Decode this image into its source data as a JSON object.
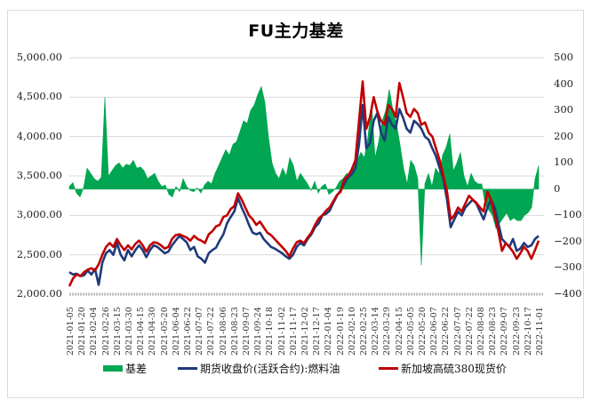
{
  "chart_data": {
    "type": "combo",
    "title": "FU主力基差",
    "left_axis": {
      "min": 2000,
      "max": 5000,
      "ticks": [
        "5,000.00",
        "4,500.00",
        "4,000.00",
        "3,500.00",
        "3,000.00",
        "2,500.00",
        "2,000.00"
      ]
    },
    "right_axis": {
      "min": -400,
      "max": 500,
      "ticks": [
        "500",
        "400",
        "300",
        "200",
        "100",
        "0",
        "−100",
        "−200",
        "−300",
        "−400"
      ]
    },
    "x_tick_labels": [
      "2021-01-05",
      "2021-01-20",
      "2021-02-04",
      "2021-02-26",
      "2021-03-15",
      "2021-03-30",
      "2021-04-15",
      "2021-04-30",
      "2021-05-20",
      "2021-06-04",
      "2021-06-22",
      "2021-07-07",
      "2021-07-22",
      "2021-08-06",
      "2021-08-23",
      "2021-09-07",
      "2021-09-24",
      "2021-10-18",
      "2021-11-02",
      "2021-11-17",
      "2021-12-02",
      "2021-12-17",
      "2022-01-04",
      "2022-01-19",
      "2022-02-10",
      "2022-02-25",
      "2022-03-14",
      "2022-03-29",
      "2022-04-15",
      "2022-05-05",
      "2022-05-20",
      "2022-06-07",
      "2022-06-22",
      "2022-07-07",
      "2022-07-22",
      "2022-08-08",
      "2022-08-23",
      "2022-09-07",
      "2022-09-23",
      "2022-10-17",
      "2022-11-01"
    ],
    "legend": [
      "基差",
      "期货收盘价(活跃合约):燃料油",
      "新加坡高硫380现货价"
    ],
    "grid": true,
    "legend_position": "bottom",
    "series": [
      {
        "name": "基差",
        "type": "area",
        "axis": "right",
        "color": "#00a651",
        "values": [
          10,
          25,
          -15,
          -30,
          5,
          80,
          60,
          40,
          30,
          45,
          350,
          50,
          70,
          90,
          100,
          80,
          95,
          90,
          110,
          80,
          85,
          70,
          40,
          50,
          60,
          30,
          10,
          15,
          -20,
          -30,
          10,
          -10,
          40,
          10,
          -5,
          -10,
          5,
          -15,
          15,
          30,
          20,
          60,
          90,
          120,
          150,
          130,
          170,
          180,
          220,
          260,
          250,
          300,
          320,
          360,
          390,
          330,
          200,
          100,
          60,
          40,
          80,
          50,
          120,
          90,
          30,
          60,
          40,
          20,
          -5,
          30,
          -15,
          10,
          20,
          -20,
          -10,
          5,
          30,
          40,
          60,
          50,
          80,
          110,
          140,
          120,
          200,
          330,
          120,
          180,
          260,
          300,
          380,
          300,
          250,
          170,
          80,
          20,
          110,
          90,
          40,
          -290,
          20,
          60,
          10,
          80,
          60,
          130,
          160,
          210,
          70,
          100,
          140,
          50,
          10,
          60,
          30,
          20,
          20,
          -60,
          -80,
          -100,
          -150,
          -130,
          -110,
          -90,
          -120,
          -110,
          -120,
          -120,
          -100,
          -90,
          -70,
          40,
          90
        ]
      },
      {
        "name": "期货收盘价(活跃合约):燃料油",
        "type": "line",
        "axis": "left",
        "color": "#1f3a7a",
        "values": [
          2280,
          2250,
          2260,
          2230,
          2240,
          2300,
          2250,
          2320,
          2120,
          2400,
          2520,
          2560,
          2500,
          2650,
          2500,
          2430,
          2560,
          2480,
          2560,
          2620,
          2560,
          2470,
          2560,
          2620,
          2600,
          2560,
          2520,
          2540,
          2620,
          2680,
          2740,
          2700,
          2660,
          2560,
          2600,
          2480,
          2450,
          2400,
          2520,
          2560,
          2590,
          2680,
          2760,
          2900,
          2980,
          3050,
          3220,
          3100,
          3000,
          2880,
          2780,
          2760,
          2780,
          2700,
          2650,
          2600,
          2580,
          2550,
          2520,
          2480,
          2450,
          2500,
          2600,
          2650,
          2620,
          2700,
          2760,
          2850,
          2900,
          3000,
          3020,
          3060,
          3160,
          3250,
          3320,
          3400,
          3480,
          3520,
          3600,
          3900,
          4400,
          3850,
          3920,
          4200,
          4300,
          4050,
          3950,
          4250,
          4150,
          4100,
          4350,
          4240,
          4100,
          4050,
          4200,
          4160,
          4100,
          4000,
          3960,
          3850,
          3750,
          3600,
          3460,
          3200,
          2850,
          2950,
          3050,
          3000,
          3100,
          3150,
          3200,
          3150,
          3050,
          2950,
          3100,
          3200,
          3100,
          2900,
          2700,
          2650,
          2600,
          2700,
          2550,
          2580,
          2650,
          2600,
          2620,
          2700,
          2740
        ]
      },
      {
        "name": "新加坡高硫380现货价",
        "type": "line",
        "axis": "left",
        "color": "#c00000",
        "values": [
          2100,
          2200,
          2250,
          2230,
          2280,
          2310,
          2330,
          2300,
          2380,
          2500,
          2600,
          2650,
          2600,
          2700,
          2620,
          2560,
          2620,
          2570,
          2640,
          2680,
          2620,
          2540,
          2620,
          2660,
          2650,
          2620,
          2580,
          2600,
          2700,
          2750,
          2760,
          2740,
          2720,
          2680,
          2740,
          2700,
          2680,
          2650,
          2760,
          2800,
          2860,
          2880,
          2980,
          3000,
          3080,
          3120,
          3280,
          3200,
          3100,
          3000,
          2950,
          2880,
          2920,
          2850,
          2780,
          2750,
          2700,
          2650,
          2600,
          2550,
          2480,
          2580,
          2660,
          2680,
          2650,
          2720,
          2780,
          2880,
          2960,
          3000,
          3060,
          3100,
          3180,
          3260,
          3300,
          3460,
          3500,
          3580,
          3700,
          4200,
          4700,
          4100,
          4250,
          4500,
          4320,
          4200,
          4150,
          4400,
          4350,
          4250,
          4680,
          4500,
          4300,
          4250,
          4350,
          4300,
          4150,
          4180,
          4050,
          4000,
          3850,
          3700,
          3500,
          3300,
          2950,
          3000,
          3100,
          3050,
          3150,
          3250,
          3200,
          3160,
          3100,
          3050,
          3300,
          3200,
          3000,
          2800,
          2550,
          2650,
          2600,
          2540,
          2450,
          2520,
          2600,
          2550,
          2450,
          2560,
          2680
        ]
      }
    ]
  }
}
